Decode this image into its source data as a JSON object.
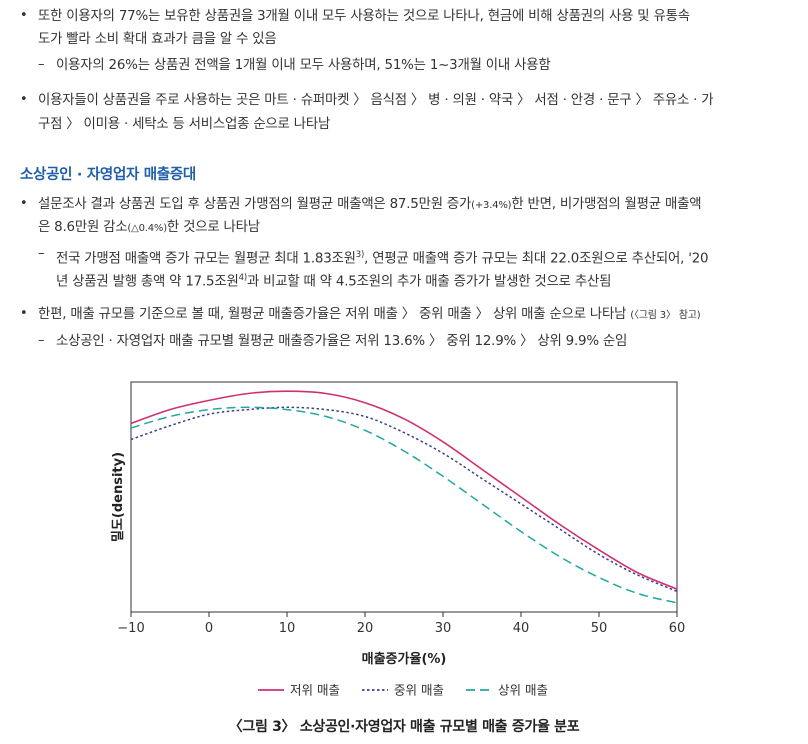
{
  "paragraphs": {
    "p1_l1": "또한 이용자의 77%는 보유한 상품권을 3개월 이내 모두 사용하는 것으로 나타나, 현금에 비해 상품권의 사용 및 유통속",
    "p1_l2": "도가 빨라 소비 확대 효과가 큼을 알 수 있음",
    "p1_sub": "이용자의 26%는 상품권 전액을 1개월 이내 모두 사용하며, 51%는 1~3개월 이내 사용함",
    "p2_l1": "이용자들이 상품권을 주로 사용하는 곳은 마트 · 슈퍼마켓 〉 음식점 〉 병 · 의원 · 약국 〉 서점 · 안경 · 문구 〉 주유소 · 가",
    "p2_l2": "구점 〉 이미용 · 세탁소 등 서비스업종 순으로 나타남",
    "section_title": "소상공인 · 자영업자 매출증대",
    "p3_l1a": "설문조사 결과 상품권 도입 후 상품권 가맹점의 월평균 매출액은 87.5만원 증가",
    "p3_l1b": "(+3.4%)",
    "p3_l1c": "한 반면, 비가맹점의 월평균 매출액",
    "p3_l2a": "은 8.6만원 감소",
    "p3_l2b": "(△0.4%)",
    "p3_l2c": "한 것으로 나타남",
    "p3_sub_l1a": "전국 가맹점 매출액 증가 규모는 월평균 최대 1.83조원",
    "p3_sub_l1_fn": "3)",
    "p3_sub_l1b": ", 연평균 매출액 증가 규모는 최대 22.0조원으로 추산되어, '20",
    "p3_sub_l2a": "년 상품권 발행 총액 약 17.5조원",
    "p3_sub_l2_fn": "4)",
    "p3_sub_l2b": "과 비교할 때 약 4.5조원의 추가 매출 증가가 발생한 것으로 추산됨",
    "p4_l1a": "한편, 매출 규모를 기준으로 볼 때, 월평균 매출증가율은 저위 매출 〉 중위 매출 〉 상위 매출 순으로 나타남 ",
    "p4_l1b": "(〈그림 3〉 참고)",
    "p4_sub": "소상공인 · 자영업자 매출 규모별 월평균 매출증가율은 저위 13.6% 〉 중위 12.9% 〉 상위 9.9% 순임",
    "bullet": "•",
    "dash": "–"
  },
  "chart_data": {
    "type": "line",
    "xlabel": "매출증가율(%)",
    "ylabel": "밀도(density)",
    "xlim": [
      -10,
      60
    ],
    "x_ticks": [
      -10,
      0,
      10,
      20,
      30,
      40,
      50,
      60
    ],
    "x_tick_labels": [
      "−10",
      "0",
      "10",
      "20",
      "30",
      "40",
      "50",
      "60"
    ],
    "y_ticks_shown": false,
    "ylim": [
      0,
      1
    ],
    "legend_position": "bottom-center",
    "series": [
      {
        "name": "저위 매출",
        "style": "solid",
        "color": "#d0306e",
        "x": [
          -10,
          -5,
          0,
          5,
          10,
          15,
          20,
          25,
          30,
          35,
          40,
          45,
          50,
          55,
          60
        ],
        "y": [
          0.82,
          0.88,
          0.92,
          0.95,
          0.96,
          0.95,
          0.91,
          0.84,
          0.74,
          0.62,
          0.5,
          0.38,
          0.27,
          0.17,
          0.1
        ]
      },
      {
        "name": "중위 매출",
        "style": "dotted",
        "color": "#3a3f8f",
        "x": [
          -10,
          -5,
          0,
          5,
          10,
          15,
          20,
          25,
          30,
          35,
          40,
          45,
          50,
          55,
          60
        ],
        "y": [
          0.75,
          0.81,
          0.86,
          0.88,
          0.89,
          0.88,
          0.85,
          0.78,
          0.69,
          0.58,
          0.47,
          0.36,
          0.25,
          0.16,
          0.09
        ]
      },
      {
        "name": "상위 매출",
        "style": "dashed",
        "color": "#20a8a0",
        "x": [
          -10,
          -5,
          0,
          5,
          10,
          15,
          20,
          25,
          30,
          35,
          40,
          45,
          50,
          55,
          60
        ],
        "y": [
          0.8,
          0.85,
          0.88,
          0.89,
          0.88,
          0.85,
          0.79,
          0.7,
          0.59,
          0.47,
          0.35,
          0.24,
          0.15,
          0.08,
          0.04
        ]
      }
    ]
  },
  "caption": "〈그림 3〉 소상공인·자영업자 매출 규모별 매출 증가율 분포"
}
